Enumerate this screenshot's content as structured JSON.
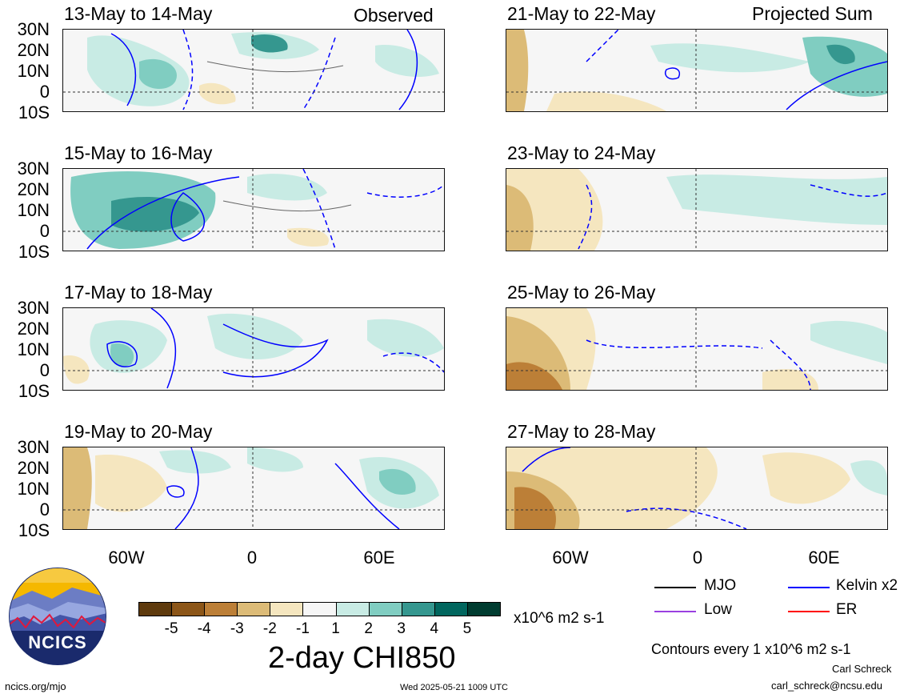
{
  "panels_left": [
    {
      "title": "13-May to 14-May",
      "corner": "Observed"
    },
    {
      "title": "15-May to 16-May",
      "corner": ""
    },
    {
      "title": "17-May to 18-May",
      "corner": ""
    },
    {
      "title": "19-May to 20-May",
      "corner": ""
    }
  ],
  "panels_right": [
    {
      "title": "21-May to 22-May",
      "corner": "Projected Sum"
    },
    {
      "title": "23-May to 24-May",
      "corner": ""
    },
    {
      "title": "25-May to 26-May",
      "corner": ""
    },
    {
      "title": "27-May to 28-May",
      "corner": ""
    }
  ],
  "lat_labels": [
    "30N",
    "20N",
    "10N",
    "0",
    "10S"
  ],
  "lon_labels": [
    "60W",
    "0",
    "60E"
  ],
  "colorbar": {
    "labels": [
      "-5",
      "-4",
      "-3",
      "-2",
      "-1",
      "1",
      "2",
      "3",
      "4",
      "5"
    ],
    "colors": [
      "#5e3a0d",
      "#8c5618",
      "#bc7f37",
      "#dcbb77",
      "#f5e6bf",
      "#f6f6f6",
      "#c8ebe4",
      "#80cdc1",
      "#35978f",
      "#01665e",
      "#003c30"
    ],
    "units": "x10^6 m2 s-1",
    "title": "2-day CHI850"
  },
  "legend": {
    "items": [
      {
        "label": "MJO",
        "color": "#000000"
      },
      {
        "label": "Kelvin x2",
        "color": "#0000ff"
      },
      {
        "label": "Low",
        "color": "#9a40e0"
      },
      {
        "label": "ER",
        "color": "#ff0000"
      }
    ],
    "contour_note": "Contours every 1 x10^6 m2 s-1"
  },
  "logo": {
    "text": "NCICS"
  },
  "footer": {
    "site": "ncics.org/mjo",
    "timestamp": "Wed 2025-05-21 1009 UTC",
    "author": "Carl Schreck",
    "email": "carl_schreck@ncsu.edu"
  }
}
